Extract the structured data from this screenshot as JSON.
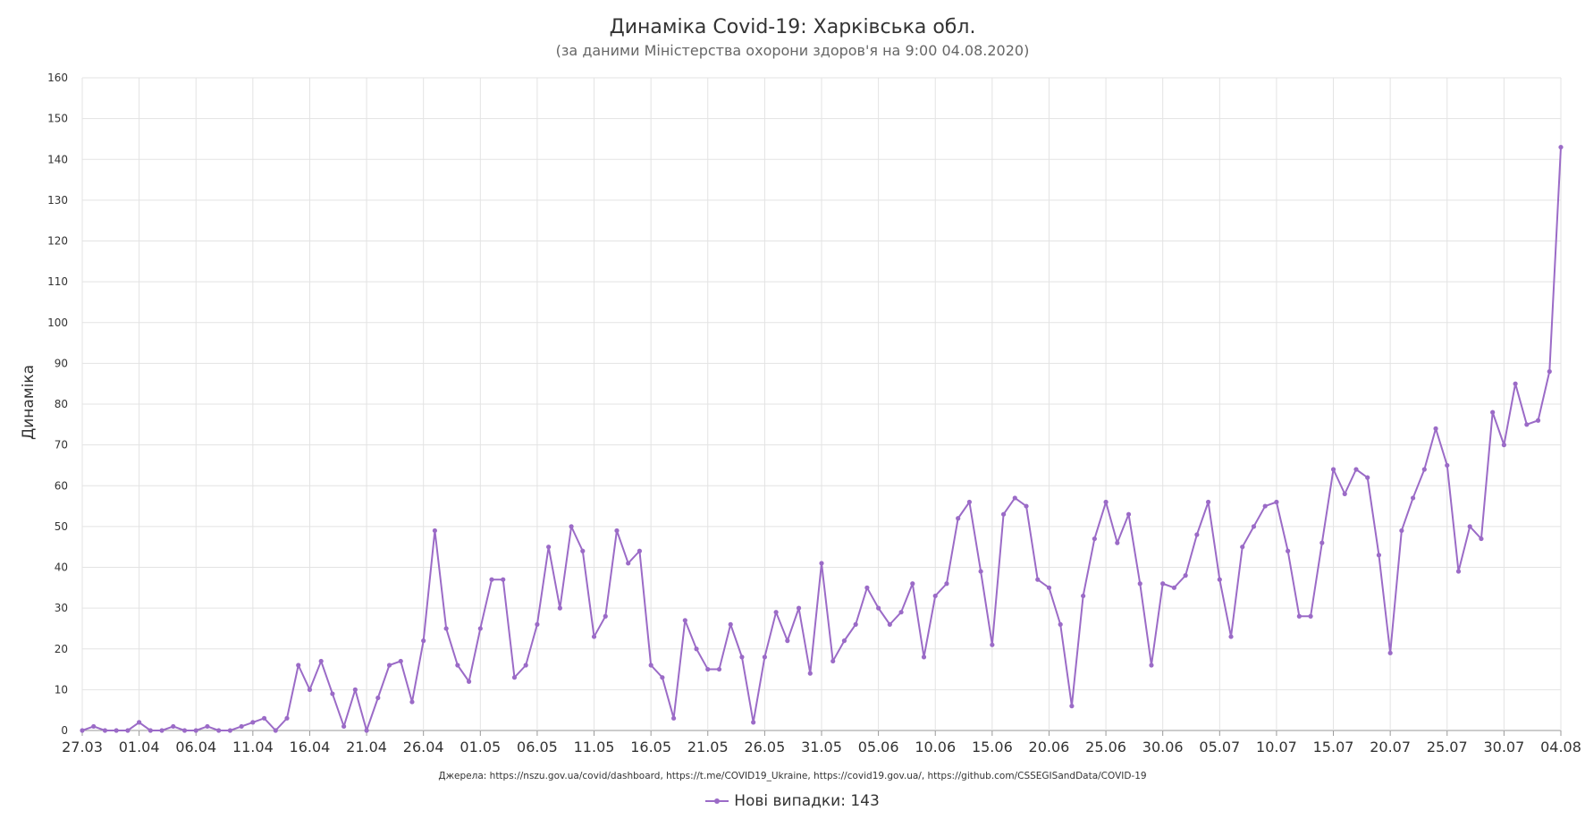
{
  "title": "Динаміка Covid-19: Харківська обл.",
  "subtitle": "(за даними Міністерства охорони здоров'я на 9:00 04.08.2020)",
  "source": "Джерела: https://nszu.gov.ua/covid/dashboard, https://t.me/COVID19_Ukraine, https://covid19.gov.ua/, https://github.com/CSSEGISandData/COVID-19",
  "legend": {
    "label": "Нові випадки: 143",
    "color": "#9b6bc7"
  },
  "chart_data": {
    "type": "line",
    "title": "Динаміка Covid-19: Харківська обл.",
    "subtitle": "(за даними Міністерства охорони здоров'я на 9:00 04.08.2020)",
    "xlabel": "",
    "ylabel": "Динаміка",
    "ylim": [
      0,
      160
    ],
    "yticks": [
      0,
      10,
      20,
      30,
      40,
      50,
      60,
      70,
      80,
      90,
      100,
      110,
      120,
      130,
      140,
      150,
      160
    ],
    "xticks": [
      "27.03",
      "01.04",
      "06.04",
      "11.04",
      "16.04",
      "21.04",
      "26.04",
      "01.05",
      "06.05",
      "11.05",
      "16.05",
      "21.05",
      "26.05",
      "31.05",
      "05.06",
      "10.06",
      "15.06",
      "20.06",
      "25.06",
      "30.06",
      "05.07",
      "10.07",
      "15.07",
      "20.07",
      "25.07",
      "30.07",
      "04.08"
    ],
    "grid": true,
    "legend_position": "bottom",
    "x_start": "27.03",
    "x_end": "04.08",
    "series": [
      {
        "name": "Нові випадки",
        "color": "#9b6bc7",
        "values": [
          0,
          1,
          0,
          0,
          0,
          2,
          0,
          0,
          1,
          0,
          0,
          1,
          0,
          0,
          1,
          2,
          3,
          0,
          3,
          16,
          10,
          17,
          9,
          1,
          10,
          0,
          8,
          16,
          17,
          7,
          22,
          49,
          25,
          16,
          12,
          25,
          37,
          37,
          13,
          16,
          26,
          45,
          30,
          50,
          44,
          23,
          28,
          49,
          41,
          44,
          16,
          13,
          3,
          27,
          20,
          15,
          15,
          26,
          18,
          2,
          18,
          29,
          22,
          30,
          14,
          41,
          17,
          22,
          26,
          35,
          30,
          26,
          29,
          36,
          18,
          33,
          36,
          52,
          56,
          39,
          21,
          53,
          57,
          55,
          37,
          35,
          26,
          6,
          33,
          47,
          56,
          46,
          53,
          36,
          16,
          36,
          35,
          38,
          48,
          56,
          37,
          23,
          45,
          50,
          55,
          56,
          44,
          28,
          28,
          46,
          64,
          58,
          64,
          62,
          43,
          19,
          49,
          57,
          64,
          74,
          65,
          39,
          50,
          47,
          78,
          70,
          85,
          75,
          76,
          88,
          143
        ]
      }
    ]
  }
}
